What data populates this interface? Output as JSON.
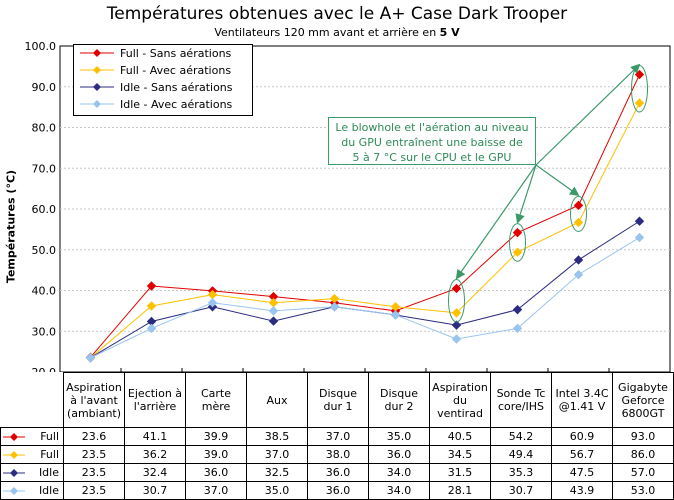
{
  "title": "Températures obtenues avec le A+ Case Dark Trooper",
  "subtitle_prefix": "Ventilateurs 120 mm avant et arrière en ",
  "subtitle_bold": "5 V",
  "callout": {
    "line1": "Le blowhole et l'aération au niveau",
    "line2": "du GPU entraînent une baisse de",
    "line3": "5 à 7 °C sur le CPU et le GPU",
    "color": "#2e8b57"
  },
  "chart_data": {
    "type": "line",
    "title": "Températures obtenues avec le A+ Case Dark Trooper",
    "ylabel": "Températures (°C)",
    "ylim": [
      20,
      100
    ],
    "yticks": [
      "20.0",
      "30.0",
      "40.0",
      "50.0",
      "60.0",
      "70.0",
      "80.0",
      "90.0",
      "100.0"
    ],
    "grid": true,
    "legend_position": "top-left",
    "categories": [
      [
        "Aspiration",
        "à l'avant",
        "(ambiant)"
      ],
      [
        "Ejection à",
        "l'arrière"
      ],
      [
        "Carte",
        "mère"
      ],
      [
        "Aux"
      ],
      [
        "Disque",
        "dur 1"
      ],
      [
        "Disque",
        "dur 2"
      ],
      [
        "Aspiration",
        "du",
        "ventirad"
      ],
      [
        "Sonde Tc",
        "core/IHS"
      ],
      [
        "Intel 3.4C",
        "@1.41 V"
      ],
      [
        "Gigabyte",
        "Geforce",
        "6800GT"
      ]
    ],
    "series": [
      {
        "name": "Full - Sans aérations",
        "table_label": "Full",
        "color": "#e00000",
        "values": [
          23.6,
          41.1,
          39.9,
          38.5,
          37.0,
          35.0,
          40.5,
          54.2,
          60.9,
          93.0
        ],
        "labels": [
          "23.6",
          "41.1",
          "39.9",
          "38.5",
          "37.0",
          "35.0",
          "40.5",
          "54.2",
          "60.9",
          "93.0"
        ]
      },
      {
        "name": "Full - Avec aérations",
        "table_label": "Full",
        "color": "#ffc000",
        "values": [
          23.5,
          36.2,
          39.0,
          37.0,
          38.0,
          36.0,
          34.5,
          49.4,
          56.7,
          86.0
        ],
        "labels": [
          "23.5",
          "36.2",
          "39.0",
          "37.0",
          "38.0",
          "36.0",
          "34.5",
          "49.4",
          "56.7",
          "86.0"
        ]
      },
      {
        "name": "Idle - Sans aérations",
        "table_label": "Idle",
        "color": "#2b2b80",
        "values": [
          23.5,
          32.4,
          36.0,
          32.5,
          36.0,
          34.0,
          31.5,
          35.3,
          47.5,
          57.0
        ],
        "labels": [
          "23.5",
          "32.4",
          "36.0",
          "32.5",
          "36.0",
          "34.0",
          "31.5",
          "35.3",
          "47.5",
          "57.0"
        ]
      },
      {
        "name": "Idle - Avec aérations",
        "table_label": "Idle",
        "color": "#99c4f0",
        "values": [
          23.5,
          30.7,
          37.0,
          35.0,
          36.0,
          34.0,
          28.1,
          30.7,
          43.9,
          53.0
        ],
        "labels": [
          "23.5",
          "30.7",
          "37.0",
          "35.0",
          "36.0",
          "34.0",
          "28.1",
          "30.7",
          "43.9",
          "53.0"
        ]
      }
    ],
    "highlighted_points": [
      6,
      7,
      8,
      9
    ]
  }
}
